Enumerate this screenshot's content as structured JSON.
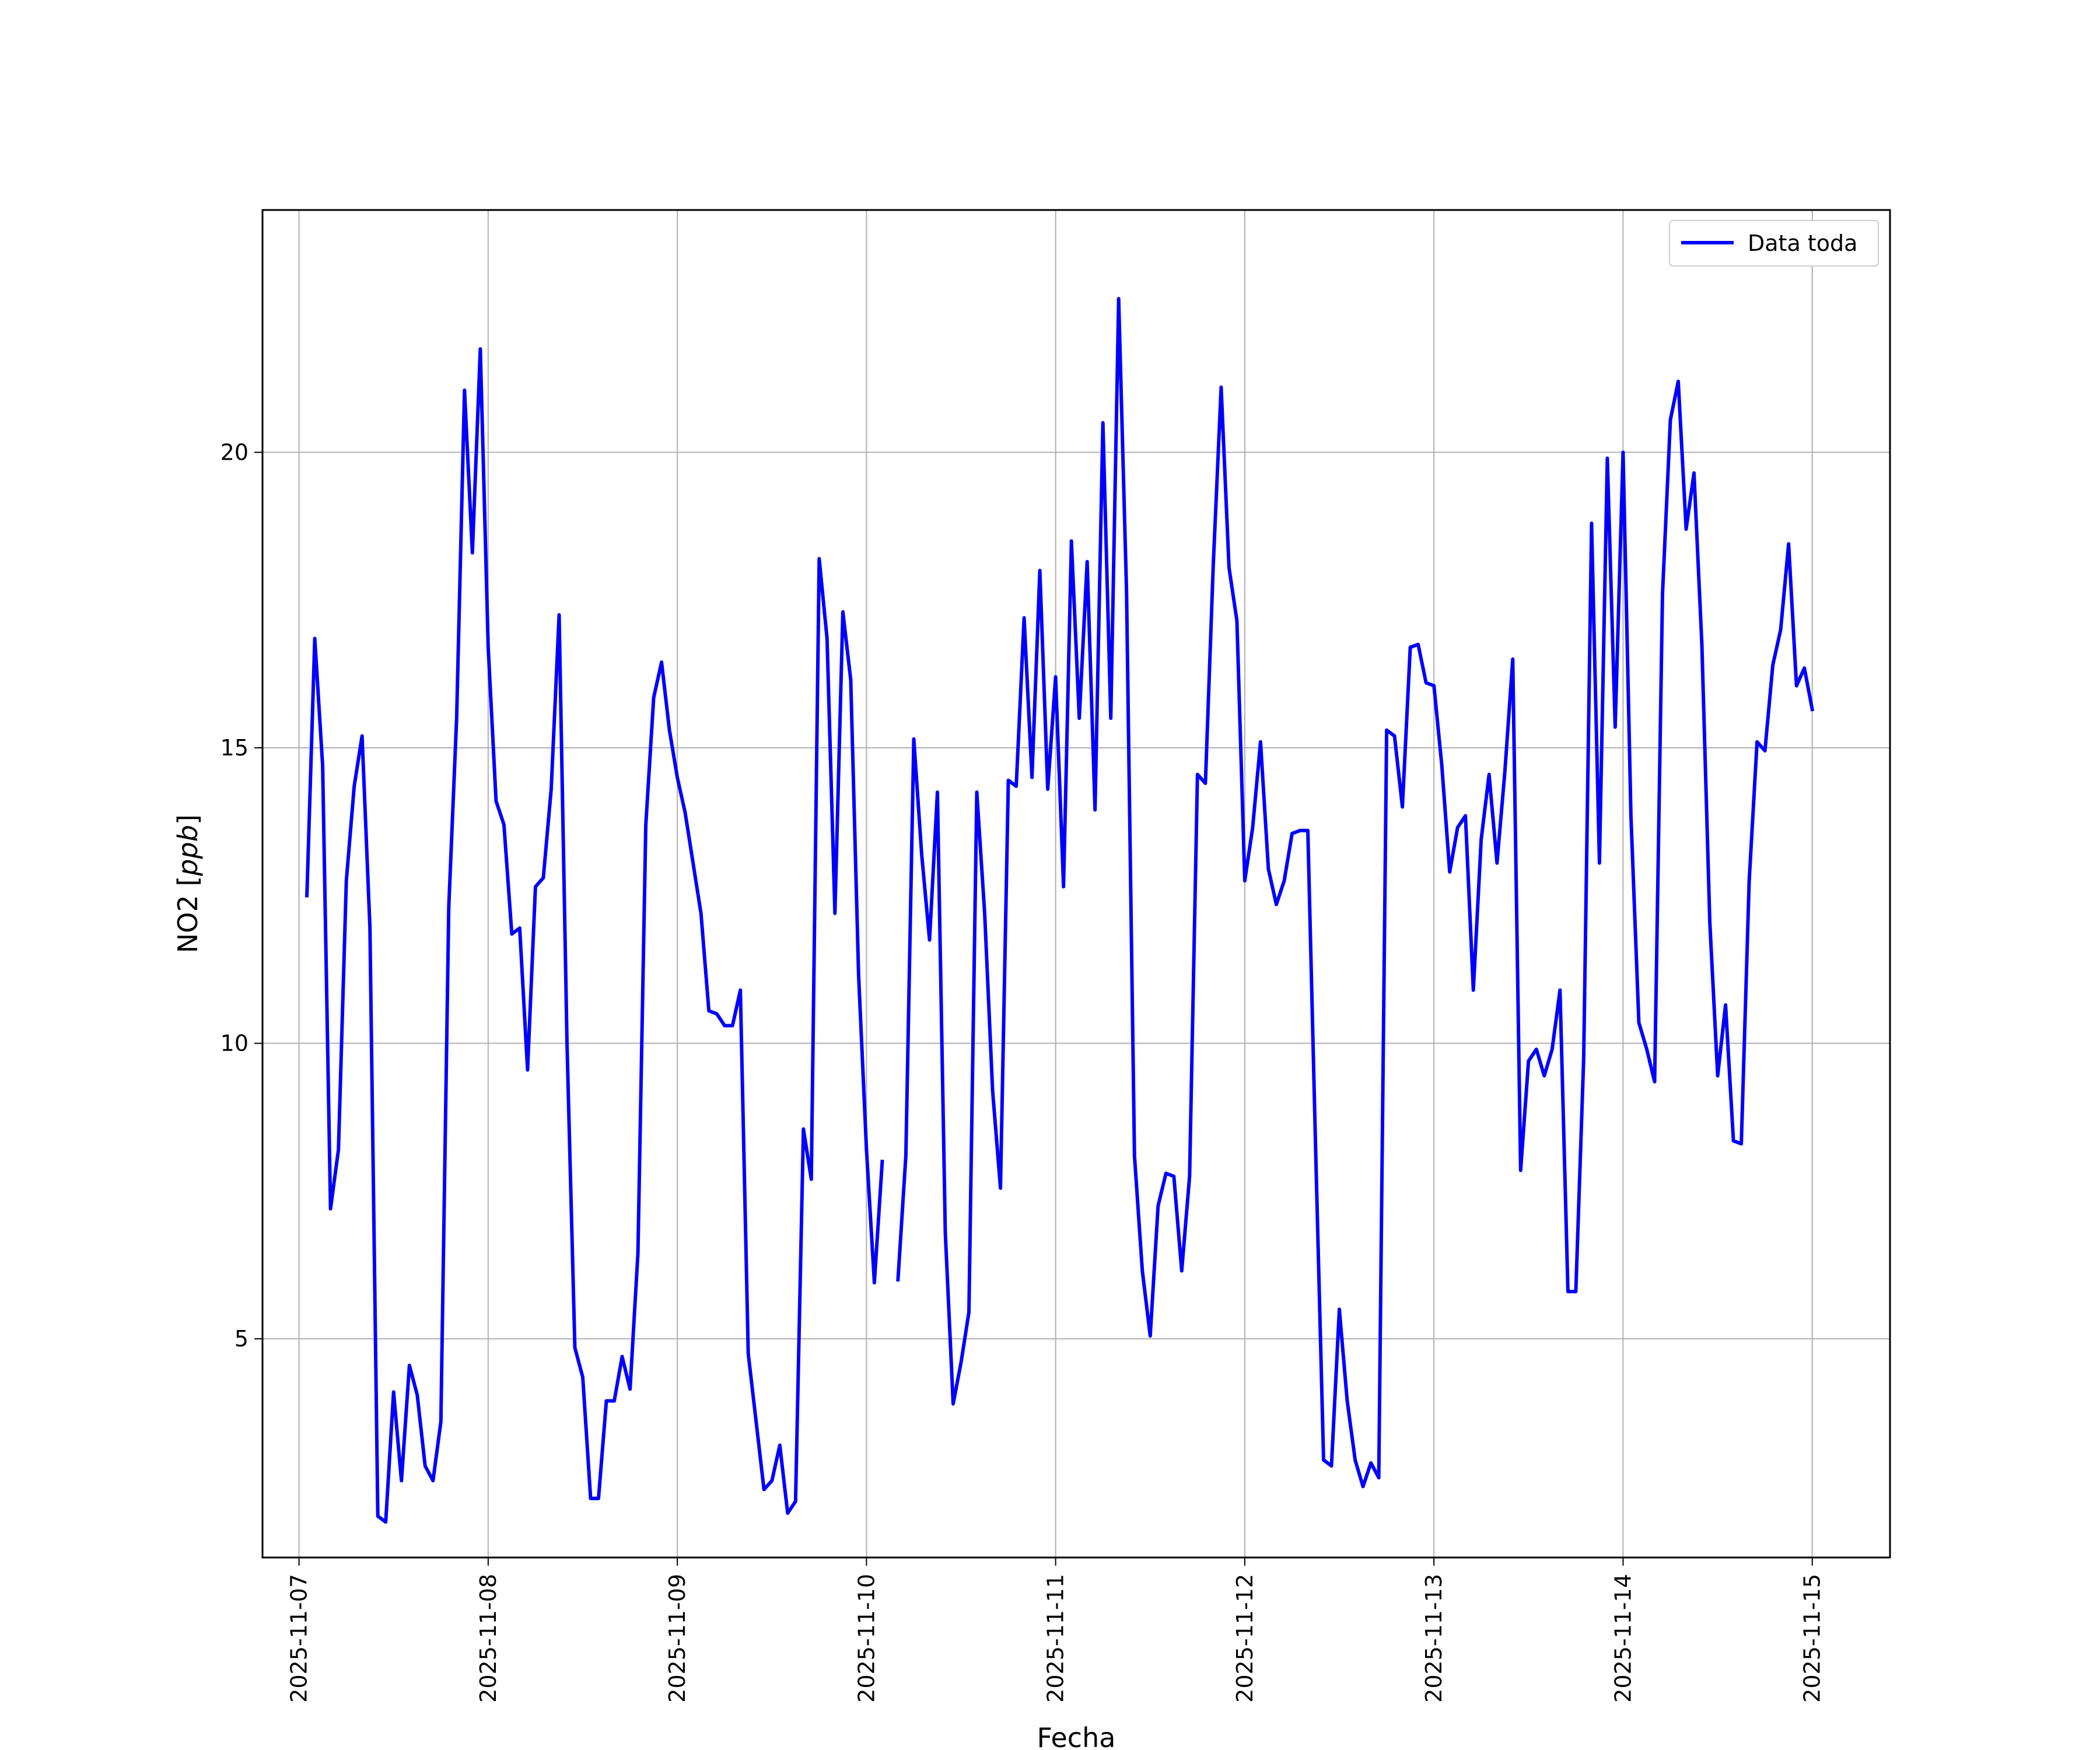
{
  "chart_data": {
    "type": "line",
    "title": "",
    "xlabel": "Fecha",
    "ylabel": "NO2 [ppb]",
    "ylabel_plain": "NO2 [",
    "ylabel_unit": "ppb",
    "ylabel_close": "]",
    "grid": true,
    "legend_position": "top-right",
    "x_ticks": [
      "2025-11-07",
      "2025-11-08",
      "2025-11-09",
      "2025-11-10",
      "2025-11-11",
      "2025-11-12",
      "2025-11-13",
      "2025-11-14",
      "2025-11-15"
    ],
    "y_ticks": [
      5,
      10,
      15,
      20
    ],
    "xlim": [
      "2025-11-06 19:22",
      "2025-11-15 09:52"
    ],
    "ylim": [
      1.3,
      24.1
    ],
    "series": [
      {
        "name": "Data toda",
        "color": "#0000ff",
        "points": [
          [
            "2025-11-07 01:00",
            12.5
          ],
          [
            "2025-11-07 02:00",
            16.85
          ],
          [
            "2025-11-07 03:00",
            14.7
          ],
          [
            "2025-11-07 04:00",
            7.2
          ],
          [
            "2025-11-07 05:00",
            8.2
          ],
          [
            "2025-11-07 06:00",
            12.75
          ],
          [
            "2025-11-07 07:00",
            14.35
          ],
          [
            "2025-11-07 08:00",
            15.2
          ],
          [
            "2025-11-07 09:00",
            11.95
          ],
          [
            "2025-11-07 10:00",
            2.0
          ],
          [
            "2025-11-07 11:00",
            1.9
          ],
          [
            "2025-11-07 12:00",
            4.1
          ],
          [
            "2025-11-07 13:00",
            2.6
          ],
          [
            "2025-11-07 14:00",
            4.55
          ],
          [
            "2025-11-07 15:00",
            4.05
          ],
          [
            "2025-11-07 16:00",
            2.85
          ],
          [
            "2025-11-07 17:00",
            2.6
          ],
          [
            "2025-11-07 18:00",
            3.6
          ],
          [
            "2025-11-07 19:00",
            12.3
          ],
          [
            "2025-11-07 20:00",
            15.5
          ],
          [
            "2025-11-07 21:00",
            21.05
          ],
          [
            "2025-11-07 22:00",
            18.3
          ],
          [
            "2025-11-07 23:00",
            21.75
          ],
          [
            "2025-11-08 00:00",
            16.7
          ],
          [
            "2025-11-08 01:00",
            14.1
          ],
          [
            "2025-11-08 02:00",
            13.7
          ],
          [
            "2025-11-08 03:00",
            11.85
          ],
          [
            "2025-11-08 04:00",
            11.95
          ],
          [
            "2025-11-08 05:00",
            9.55
          ],
          [
            "2025-11-08 06:00",
            12.65
          ],
          [
            "2025-11-08 07:00",
            12.8
          ],
          [
            "2025-11-08 08:00",
            14.3
          ],
          [
            "2025-11-08 09:00",
            17.25
          ],
          [
            "2025-11-08 10:00",
            10.0
          ],
          [
            "2025-11-08 11:00",
            4.85
          ],
          [
            "2025-11-08 12:00",
            4.35
          ],
          [
            "2025-11-08 13:00",
            2.3
          ],
          [
            "2025-11-08 14:00",
            2.3
          ],
          [
            "2025-11-08 15:00",
            3.95
          ],
          [
            "2025-11-08 16:00",
            3.95
          ],
          [
            "2025-11-08 17:00",
            4.7
          ],
          [
            "2025-11-08 18:00",
            4.15
          ],
          [
            "2025-11-08 19:00",
            6.45
          ],
          [
            "2025-11-08 20:00",
            13.7
          ],
          [
            "2025-11-08 21:00",
            15.85
          ],
          [
            "2025-11-08 22:00",
            16.45
          ],
          [
            "2025-11-08 23:00",
            15.3
          ],
          [
            "2025-11-09 00:00",
            14.5
          ],
          [
            "2025-11-09 01:00",
            13.9
          ],
          [
            "2025-11-09 02:00",
            13.05
          ],
          [
            "2025-11-09 03:00",
            12.2
          ],
          [
            "2025-11-09 04:00",
            10.55
          ],
          [
            "2025-11-09 05:00",
            10.5
          ],
          [
            "2025-11-09 06:00",
            10.3
          ],
          [
            "2025-11-09 07:00",
            10.3
          ],
          [
            "2025-11-09 08:00",
            10.9
          ],
          [
            "2025-11-09 09:00",
            4.75
          ],
          [
            "2025-11-09 10:00",
            3.6
          ],
          [
            "2025-11-09 11:00",
            2.45
          ],
          [
            "2025-11-09 12:00",
            2.6
          ],
          [
            "2025-11-09 13:00",
            3.2
          ],
          [
            "2025-11-09 14:00",
            2.05
          ],
          [
            "2025-11-09 15:00",
            2.25
          ],
          [
            "2025-11-09 16:00",
            8.55
          ],
          [
            "2025-11-09 17:00",
            7.7
          ],
          [
            "2025-11-09 18:00",
            18.2
          ],
          [
            "2025-11-09 19:00",
            16.85
          ],
          [
            "2025-11-09 20:00",
            12.2
          ],
          [
            "2025-11-09 21:00",
            17.3
          ],
          [
            "2025-11-09 22:00",
            16.15
          ],
          [
            "2025-11-09 23:00",
            11.15
          ],
          [
            "2025-11-10 00:00",
            8.2
          ],
          [
            "2025-11-10 01:00",
            5.95
          ],
          [
            "2025-11-10 02:00",
            8.0
          ],
          [
            "2025-11-10 03:00",
            null
          ],
          [
            "2025-11-10 04:00",
            6.0
          ],
          [
            "2025-11-10 05:00",
            8.1
          ],
          [
            "2025-11-10 06:00",
            15.15
          ],
          [
            "2025-11-10 07:00",
            13.2
          ],
          [
            "2025-11-10 08:00",
            11.75
          ],
          [
            "2025-11-10 09:00",
            14.25
          ],
          [
            "2025-11-10 10:00",
            6.8
          ],
          [
            "2025-11-10 11:00",
            3.9
          ],
          [
            "2025-11-10 12:00",
            4.6
          ],
          [
            "2025-11-10 13:00",
            5.45
          ],
          [
            "2025-11-10 14:00",
            14.25
          ],
          [
            "2025-11-10 15:00",
            12.2
          ],
          [
            "2025-11-10 16:00",
            9.2
          ],
          [
            "2025-11-10 17:00",
            7.55
          ],
          [
            "2025-11-10 18:00",
            14.45
          ],
          [
            "2025-11-10 19:00",
            14.35
          ],
          [
            "2025-11-10 20:00",
            17.2
          ],
          [
            "2025-11-10 21:00",
            14.5
          ],
          [
            "2025-11-10 22:00",
            18.0
          ],
          [
            "2025-11-10 23:00",
            14.3
          ],
          [
            "2025-11-11 00:00",
            16.2
          ],
          [
            "2025-11-11 01:00",
            12.65
          ],
          [
            "2025-11-11 02:00",
            18.5
          ],
          [
            "2025-11-11 03:00",
            15.5
          ],
          [
            "2025-11-11 04:00",
            18.15
          ],
          [
            "2025-11-11 05:00",
            13.95
          ],
          [
            "2025-11-11 06:00",
            20.5
          ],
          [
            "2025-11-11 07:00",
            15.5
          ],
          [
            "2025-11-11 08:00",
            22.6
          ],
          [
            "2025-11-11 09:00",
            17.65
          ],
          [
            "2025-11-11 10:00",
            8.1
          ],
          [
            "2025-11-11 11:00",
            6.15
          ],
          [
            "2025-11-11 12:00",
            5.05
          ],
          [
            "2025-11-11 13:00",
            7.25
          ],
          [
            "2025-11-11 14:00",
            7.8
          ],
          [
            "2025-11-11 15:00",
            7.75
          ],
          [
            "2025-11-11 16:00",
            6.15
          ],
          [
            "2025-11-11 17:00",
            7.75
          ],
          [
            "2025-11-11 18:00",
            14.55
          ],
          [
            "2025-11-11 19:00",
            14.4
          ],
          [
            "2025-11-11 20:00",
            18.1
          ],
          [
            "2025-11-11 21:00",
            21.1
          ],
          [
            "2025-11-11 22:00",
            18.05
          ],
          [
            "2025-11-11 23:00",
            17.15
          ],
          [
            "2025-11-12 00:00",
            12.75
          ],
          [
            "2025-11-12 01:00",
            13.65
          ],
          [
            "2025-11-12 02:00",
            15.1
          ],
          [
            "2025-11-12 03:00",
            12.95
          ],
          [
            "2025-11-12 04:00",
            12.35
          ],
          [
            "2025-11-12 05:00",
            12.75
          ],
          [
            "2025-11-12 06:00",
            13.55
          ],
          [
            "2025-11-12 07:00",
            13.6
          ],
          [
            "2025-11-12 08:00",
            13.6
          ],
          [
            "2025-11-12 09:00",
            8.15
          ],
          [
            "2025-11-12 10:00",
            2.95
          ],
          [
            "2025-11-12 11:00",
            2.85
          ],
          [
            "2025-11-12 12:00",
            5.5
          ],
          [
            "2025-11-12 13:00",
            3.95
          ],
          [
            "2025-11-12 14:00",
            2.95
          ],
          [
            "2025-11-12 15:00",
            2.5
          ],
          [
            "2025-11-12 16:00",
            2.9
          ],
          [
            "2025-11-12 17:00",
            2.65
          ],
          [
            "2025-11-12 18:00",
            15.3
          ],
          [
            "2025-11-12 19:00",
            15.2
          ],
          [
            "2025-11-12 20:00",
            14.0
          ],
          [
            "2025-11-12 21:00",
            16.7
          ],
          [
            "2025-11-12 22:00",
            16.75
          ],
          [
            "2025-11-12 23:00",
            16.1
          ],
          [
            "2025-11-13 00:00",
            16.05
          ],
          [
            "2025-11-13 01:00",
            14.7
          ],
          [
            "2025-11-13 02:00",
            12.9
          ],
          [
            "2025-11-13 03:00",
            13.65
          ],
          [
            "2025-11-13 04:00",
            13.85
          ],
          [
            "2025-11-13 05:00",
            10.9
          ],
          [
            "2025-11-13 06:00",
            13.45
          ],
          [
            "2025-11-13 07:00",
            14.55
          ],
          [
            "2025-11-13 08:00",
            13.05
          ],
          [
            "2025-11-13 09:00",
            14.6
          ],
          [
            "2025-11-13 10:00",
            16.5
          ],
          [
            "2025-11-13 11:00",
            7.85
          ],
          [
            "2025-11-13 12:00",
            9.7
          ],
          [
            "2025-11-13 13:00",
            9.9
          ],
          [
            "2025-11-13 14:00",
            9.45
          ],
          [
            "2025-11-13 15:00",
            9.9
          ],
          [
            "2025-11-13 16:00",
            10.9
          ],
          [
            "2025-11-13 17:00",
            5.8
          ],
          [
            "2025-11-13 18:00",
            5.8
          ],
          [
            "2025-11-13 19:00",
            9.75
          ],
          [
            "2025-11-13 20:00",
            18.8
          ],
          [
            "2025-11-13 21:00",
            13.05
          ],
          [
            "2025-11-13 22:00",
            19.9
          ],
          [
            "2025-11-13 23:00",
            15.35
          ],
          [
            "2025-11-14 00:00",
            20.0
          ],
          [
            "2025-11-14 01:00",
            13.85
          ],
          [
            "2025-11-14 02:00",
            10.35
          ],
          [
            "2025-11-14 03:00",
            9.9
          ],
          [
            "2025-11-14 04:00",
            9.35
          ],
          [
            "2025-11-14 05:00",
            17.6
          ],
          [
            "2025-11-14 06:00",
            20.55
          ],
          [
            "2025-11-14 07:00",
            21.2
          ],
          [
            "2025-11-14 08:00",
            18.7
          ],
          [
            "2025-11-14 09:00",
            19.65
          ],
          [
            "2025-11-14 10:00",
            16.75
          ],
          [
            "2025-11-14 11:00",
            12.05
          ],
          [
            "2025-11-14 12:00",
            9.45
          ],
          [
            "2025-11-14 13:00",
            10.65
          ],
          [
            "2025-11-14 14:00",
            8.35
          ],
          [
            "2025-11-14 15:00",
            8.3
          ],
          [
            "2025-11-14 16:00",
            12.75
          ],
          [
            "2025-11-14 17:00",
            15.1
          ],
          [
            "2025-11-14 18:00",
            14.95
          ],
          [
            "2025-11-14 19:00",
            16.4
          ],
          [
            "2025-11-14 20:00",
            17.0
          ],
          [
            "2025-11-14 21:00",
            18.45
          ],
          [
            "2025-11-14 22:00",
            16.05
          ],
          [
            "2025-11-14 23:00",
            16.35
          ],
          [
            "2025-11-15 00:00",
            15.65
          ]
        ]
      }
    ]
  }
}
